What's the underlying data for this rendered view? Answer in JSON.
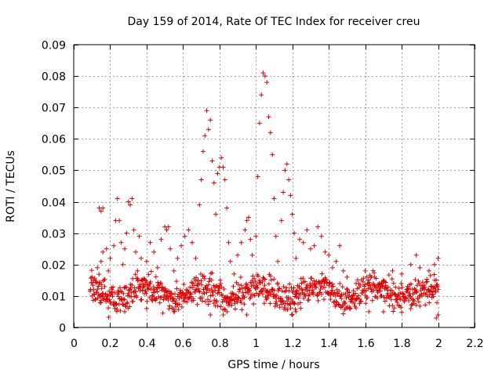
{
  "chart_data": {
    "type": "scatter",
    "title": "Day 159 of 2014, Rate Of TEC Index for receiver creu",
    "xlabel": "GPS time / hours",
    "ylabel": "ROTI / TECUs",
    "xlim": [
      0,
      2.2
    ],
    "ylim": [
      0,
      0.09
    ],
    "xticks": [
      0,
      0.2,
      0.4,
      0.6,
      0.8,
      1,
      1.2,
      1.4,
      1.6,
      1.8,
      2,
      2.2
    ],
    "xtick_labels": [
      "0",
      "0.2",
      "0.4",
      "0.6",
      "0.8",
      "1",
      "1.2",
      "1.4",
      "1.6",
      "1.8",
      "2",
      "2.2"
    ],
    "yticks": [
      0,
      0.01,
      0.02,
      0.03,
      0.04,
      0.05,
      0.06,
      0.07,
      0.08,
      0.09
    ],
    "ytick_labels": [
      "0",
      "0.01",
      "0.02",
      "0.03",
      "0.04",
      "0.05",
      "0.06",
      "0.07",
      "0.08",
      "0.09"
    ],
    "grid": true,
    "marker": "+",
    "color": "#e00000",
    "series": [
      {
        "name": "ROTI",
        "points": [
          [
            0.1,
            0.016
          ],
          [
            0.11,
            0.012
          ],
          [
            0.12,
            0.009
          ],
          [
            0.13,
            0.019
          ],
          [
            0.14,
            0.014
          ],
          [
            0.15,
            0.021
          ],
          [
            0.15,
            0.01
          ],
          [
            0.16,
            0.024
          ],
          [
            0.17,
            0.013
          ],
          [
            0.14,
            0.038
          ],
          [
            0.15,
            0.037
          ],
          [
            0.16,
            0.038
          ],
          [
            0.18,
            0.025
          ],
          [
            0.19,
            0.018
          ],
          [
            0.2,
            0.022
          ],
          [
            0.21,
            0.012
          ],
          [
            0.22,
            0.026
          ],
          [
            0.23,
            0.034
          ],
          [
            0.24,
            0.041
          ],
          [
            0.25,
            0.034
          ],
          [
            0.26,
            0.027
          ],
          [
            0.27,
            0.02
          ],
          [
            0.28,
            0.025
          ],
          [
            0.29,
            0.03
          ],
          [
            0.3,
            0.04
          ],
          [
            0.31,
            0.039
          ],
          [
            0.32,
            0.041
          ],
          [
            0.33,
            0.031
          ],
          [
            0.34,
            0.024
          ],
          [
            0.35,
            0.018
          ],
          [
            0.36,
            0.029
          ],
          [
            0.37,
            0.022
          ],
          [
            0.38,
            0.015
          ],
          [
            0.4,
            0.021
          ],
          [
            0.42,
            0.027
          ],
          [
            0.44,
            0.024
          ],
          [
            0.46,
            0.019
          ],
          [
            0.48,
            0.028
          ],
          [
            0.5,
            0.032
          ],
          [
            0.51,
            0.031
          ],
          [
            0.52,
            0.032
          ],
          [
            0.53,
            0.025
          ],
          [
            0.55,
            0.018
          ],
          [
            0.57,
            0.022
          ],
          [
            0.59,
            0.026
          ],
          [
            0.61,
            0.029
          ],
          [
            0.63,
            0.031
          ],
          [
            0.65,
            0.027
          ],
          [
            0.67,
            0.022
          ],
          [
            0.69,
            0.039
          ],
          [
            0.7,
            0.047
          ],
          [
            0.71,
            0.056
          ],
          [
            0.72,
            0.061
          ],
          [
            0.73,
            0.069
          ],
          [
            0.74,
            0.063
          ],
          [
            0.75,
            0.066
          ],
          [
            0.76,
            0.053
          ],
          [
            0.77,
            0.046
          ],
          [
            0.78,
            0.036
          ],
          [
            0.79,
            0.049
          ],
          [
            0.8,
            0.051
          ],
          [
            0.81,
            0.054
          ],
          [
            0.82,
            0.051
          ],
          [
            0.83,
            0.047
          ],
          [
            0.84,
            0.038
          ],
          [
            0.85,
            0.027
          ],
          [
            0.86,
            0.021
          ],
          [
            0.88,
            0.017
          ],
          [
            0.9,
            0.023
          ],
          [
            0.92,
            0.027
          ],
          [
            0.94,
            0.031
          ],
          [
            0.95,
            0.034
          ],
          [
            0.96,
            0.035
          ],
          [
            0.97,
            0.028
          ],
          [
            0.98,
            0.023
          ],
          [
            1.0,
            0.029
          ],
          [
            1.01,
            0.048
          ],
          [
            1.02,
            0.065
          ],
          [
            1.03,
            0.074
          ],
          [
            1.04,
            0.081
          ],
          [
            1.05,
            0.08
          ],
          [
            1.06,
            0.078
          ],
          [
            1.07,
            0.067
          ],
          [
            1.08,
            0.062
          ],
          [
            1.09,
            0.055
          ],
          [
            1.1,
            0.041
          ],
          [
            1.11,
            0.029
          ],
          [
            1.12,
            0.021
          ],
          [
            1.14,
            0.034
          ],
          [
            1.15,
            0.043
          ],
          [
            1.16,
            0.05
          ],
          [
            1.17,
            0.052
          ],
          [
            1.18,
            0.047
          ],
          [
            1.19,
            0.042
          ],
          [
            1.2,
            0.036
          ],
          [
            1.21,
            0.03
          ],
          [
            1.22,
            0.022
          ],
          [
            1.24,
            0.028
          ],
          [
            1.26,
            0.027
          ],
          [
            1.28,
            0.031
          ],
          [
            1.3,
            0.025
          ],
          [
            1.32,
            0.026
          ],
          [
            1.34,
            0.032
          ],
          [
            1.36,
            0.029
          ],
          [
            1.38,
            0.024
          ],
          [
            1.4,
            0.023
          ],
          [
            1.42,
            0.019
          ],
          [
            1.44,
            0.021
          ],
          [
            1.46,
            0.026
          ],
          [
            1.48,
            0.018
          ],
          [
            1.5,
            0.016
          ],
          [
            1.55,
            0.014
          ],
          [
            1.6,
            0.018
          ],
          [
            1.65,
            0.016
          ],
          [
            1.7,
            0.015
          ],
          [
            1.75,
            0.018
          ],
          [
            1.8,
            0.017
          ],
          [
            1.85,
            0.02
          ],
          [
            1.88,
            0.023
          ],
          [
            1.9,
            0.019
          ],
          [
            1.95,
            0.018
          ],
          [
            1.98,
            0.02
          ],
          [
            2.0,
            0.022
          ],
          [
            2.0,
            0.004
          ],
          [
            1.99,
            0.003
          ],
          [
            1.2,
            0.004
          ],
          [
            1.22,
            0.005
          ],
          [
            0.95,
            0.004
          ],
          [
            0.75,
            0.004
          ],
          [
            0.55,
            0.005
          ],
          [
            0.28,
            0.005
          ],
          [
            0.4,
            0.006
          ],
          [
            1.7,
            0.005
          ],
          [
            1.62,
            0.005
          ],
          [
            1.85,
            0.006
          ],
          [
            0.15,
            0.008
          ]
        ],
        "band": {
          "description": "dense background cluster",
          "x_range": [
            0.09,
            2.0
          ],
          "center": 0.011,
          "spread": 0.007
        }
      }
    ]
  }
}
